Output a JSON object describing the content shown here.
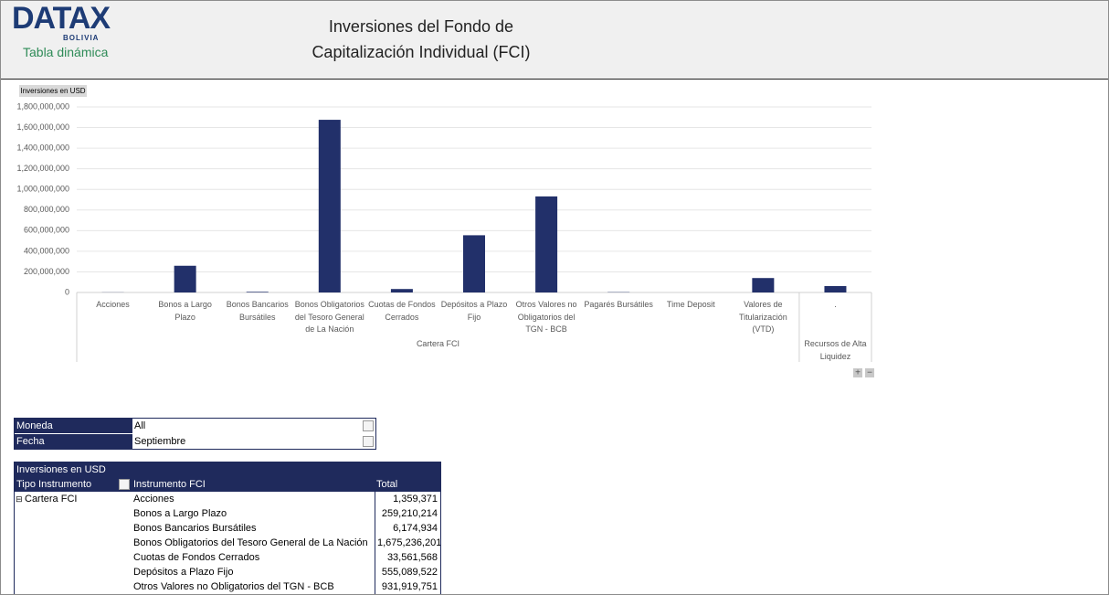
{
  "header": {
    "logo": "DATAX",
    "logo_sub": "BOLIVIA",
    "subtitle": "Tabla dinámica",
    "title_line1": "Inversiones del Fondo de",
    "title_line2": "Capitalización Individual (FCI)"
  },
  "chart_data": {
    "type": "bar",
    "y_label": "Inversiones en USD",
    "color": "#22306a",
    "grid": true,
    "ylim": [
      0,
      1800000000
    ],
    "yticks": [
      0,
      {
        "value": 200000000,
        "label": "200,000,000"
      },
      {
        "value": 400000000,
        "label": "400,000,000"
      },
      {
        "value": 600000000,
        "label": "600,000,000"
      },
      {
        "value": 800000000,
        "label": "800,000,000"
      },
      {
        "value": 1000000000,
        "label": "1,000,000,000"
      },
      {
        "value": 1200000000,
        "label": "1,200,000,000"
      },
      {
        "value": 1400000000,
        "label": "1,400,000,000"
      },
      {
        "value": 1600000000,
        "label": "1,600,000,000"
      },
      {
        "value": 1800000000,
        "label": "1,800,000,000"
      }
    ],
    "groups": [
      {
        "name": "Cartera FCI",
        "categories": [
          "Acciones",
          "Bonos a Largo Plazo",
          "Bonos Bancarios Bursátiles",
          "Bonos Obligatorios del Tesoro General de La Nación",
          "Cuotas de Fondos Cerrados",
          "Depósitos a Plazo Fijo",
          "Otros Valores no Obligatorios del TGN - BCB",
          "Pagarés Bursátiles",
          "Time Deposit",
          "Valores de Titularización (VTD)"
        ],
        "values": [
          1359371,
          259210214,
          6174934,
          1675236201,
          33561568,
          555089522,
          931919751,
          3000000,
          0,
          140000000
        ]
      },
      {
        "name": "Recursos de Alta Liquidez",
        "categories": [
          "."
        ],
        "values": [
          62000000
        ]
      }
    ]
  },
  "filters": [
    [
      "Moneda",
      "All"
    ],
    [
      "Fecha",
      "Septiembre"
    ]
  ],
  "table": {
    "title": "Inversiones en USD",
    "columns": [
      "Tipo Instrumento",
      "Instrumento FCI",
      "Total"
    ],
    "group": "Cartera FCI",
    "rows": [
      [
        "Acciones",
        "1,359,371"
      ],
      [
        "Bonos a Largo Plazo",
        "259,210,214"
      ],
      [
        "Bonos Bancarios Bursátiles",
        "6,174,934"
      ],
      [
        "Bonos Obligatorios del Tesoro General de La Nación",
        "1,675,236,201"
      ],
      [
        "Cuotas de Fondos Cerrados",
        "33,561,568"
      ],
      [
        "Depósitos a Plazo Fijo",
        "555,089,522"
      ],
      [
        "Otros Valores no Obligatorios del TGN - BCB",
        "931,919,751"
      ]
    ]
  }
}
